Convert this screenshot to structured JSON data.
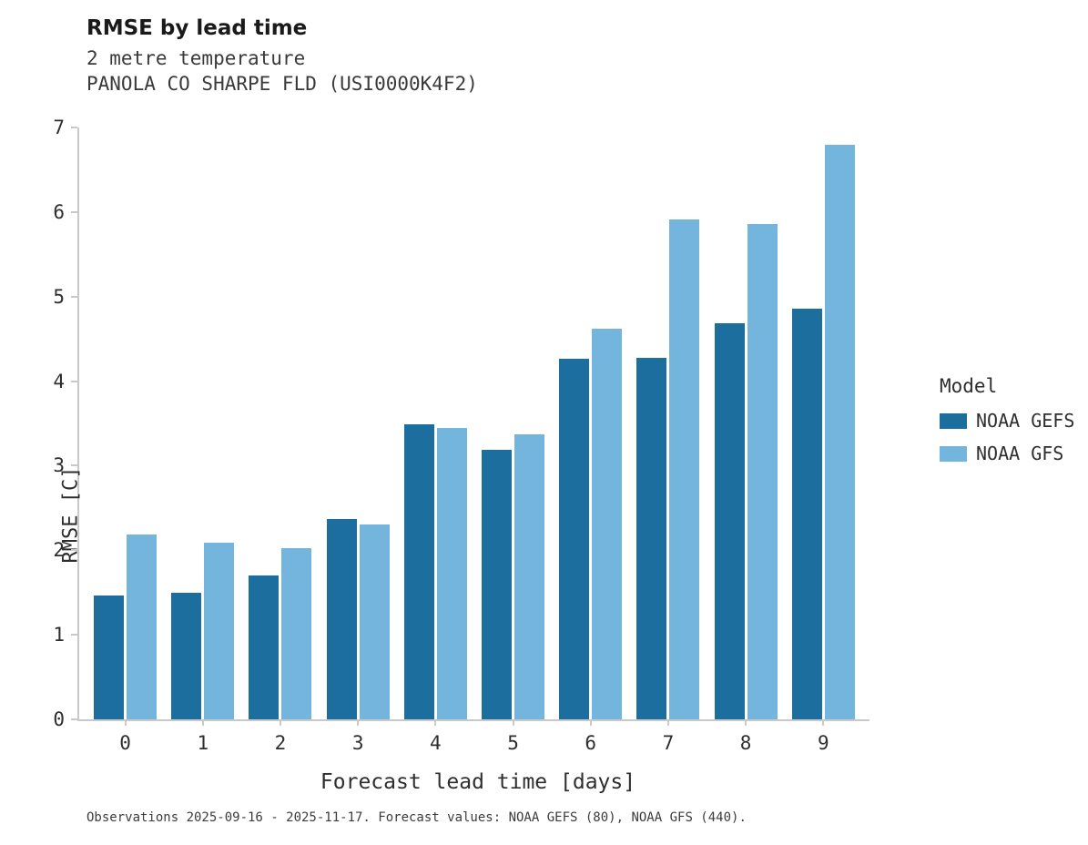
{
  "header": {
    "title": "RMSE by lead time",
    "subtitle1": "2 metre temperature",
    "subtitle2": "PANOLA CO SHARPE FLD (USI0000K4F2)"
  },
  "footer": {
    "caption": "Observations 2025-09-16 - 2025-11-17. Forecast values: NOAA GEFS (80), NOAA GFS (440)."
  },
  "legend": {
    "title": "Model",
    "items": [
      {
        "label": "NOAA GEFS",
        "color": "#1c6e9e"
      },
      {
        "label": "NOAA GFS",
        "color": "#73b5dc"
      }
    ]
  },
  "chart_data": {
    "type": "bar",
    "title": "RMSE by lead time",
    "subtitle": "2 metre temperature — PANOLA CO SHARPE FLD (USI0000K4F2)",
    "xlabel": "Forecast lead time [days]",
    "ylabel": "RMSE [C]",
    "categories": [
      "0",
      "1",
      "2",
      "3",
      "4",
      "5",
      "6",
      "7",
      "8",
      "9"
    ],
    "series": [
      {
        "name": "NOAA GEFS",
        "color": "#1c6e9e",
        "values": [
          1.46,
          1.5,
          1.7,
          2.37,
          3.49,
          3.19,
          4.27,
          4.28,
          4.69,
          4.86
        ]
      },
      {
        "name": "NOAA GFS",
        "color": "#73b5dc",
        "values": [
          2.19,
          2.09,
          2.03,
          2.31,
          3.45,
          3.37,
          4.62,
          5.91,
          5.86,
          6.8
        ]
      }
    ],
    "ylim": [
      0,
      7
    ],
    "yticks": [
      0,
      1,
      2,
      3,
      4,
      5,
      6,
      7
    ],
    "grid": false,
    "legend_position": "right"
  }
}
